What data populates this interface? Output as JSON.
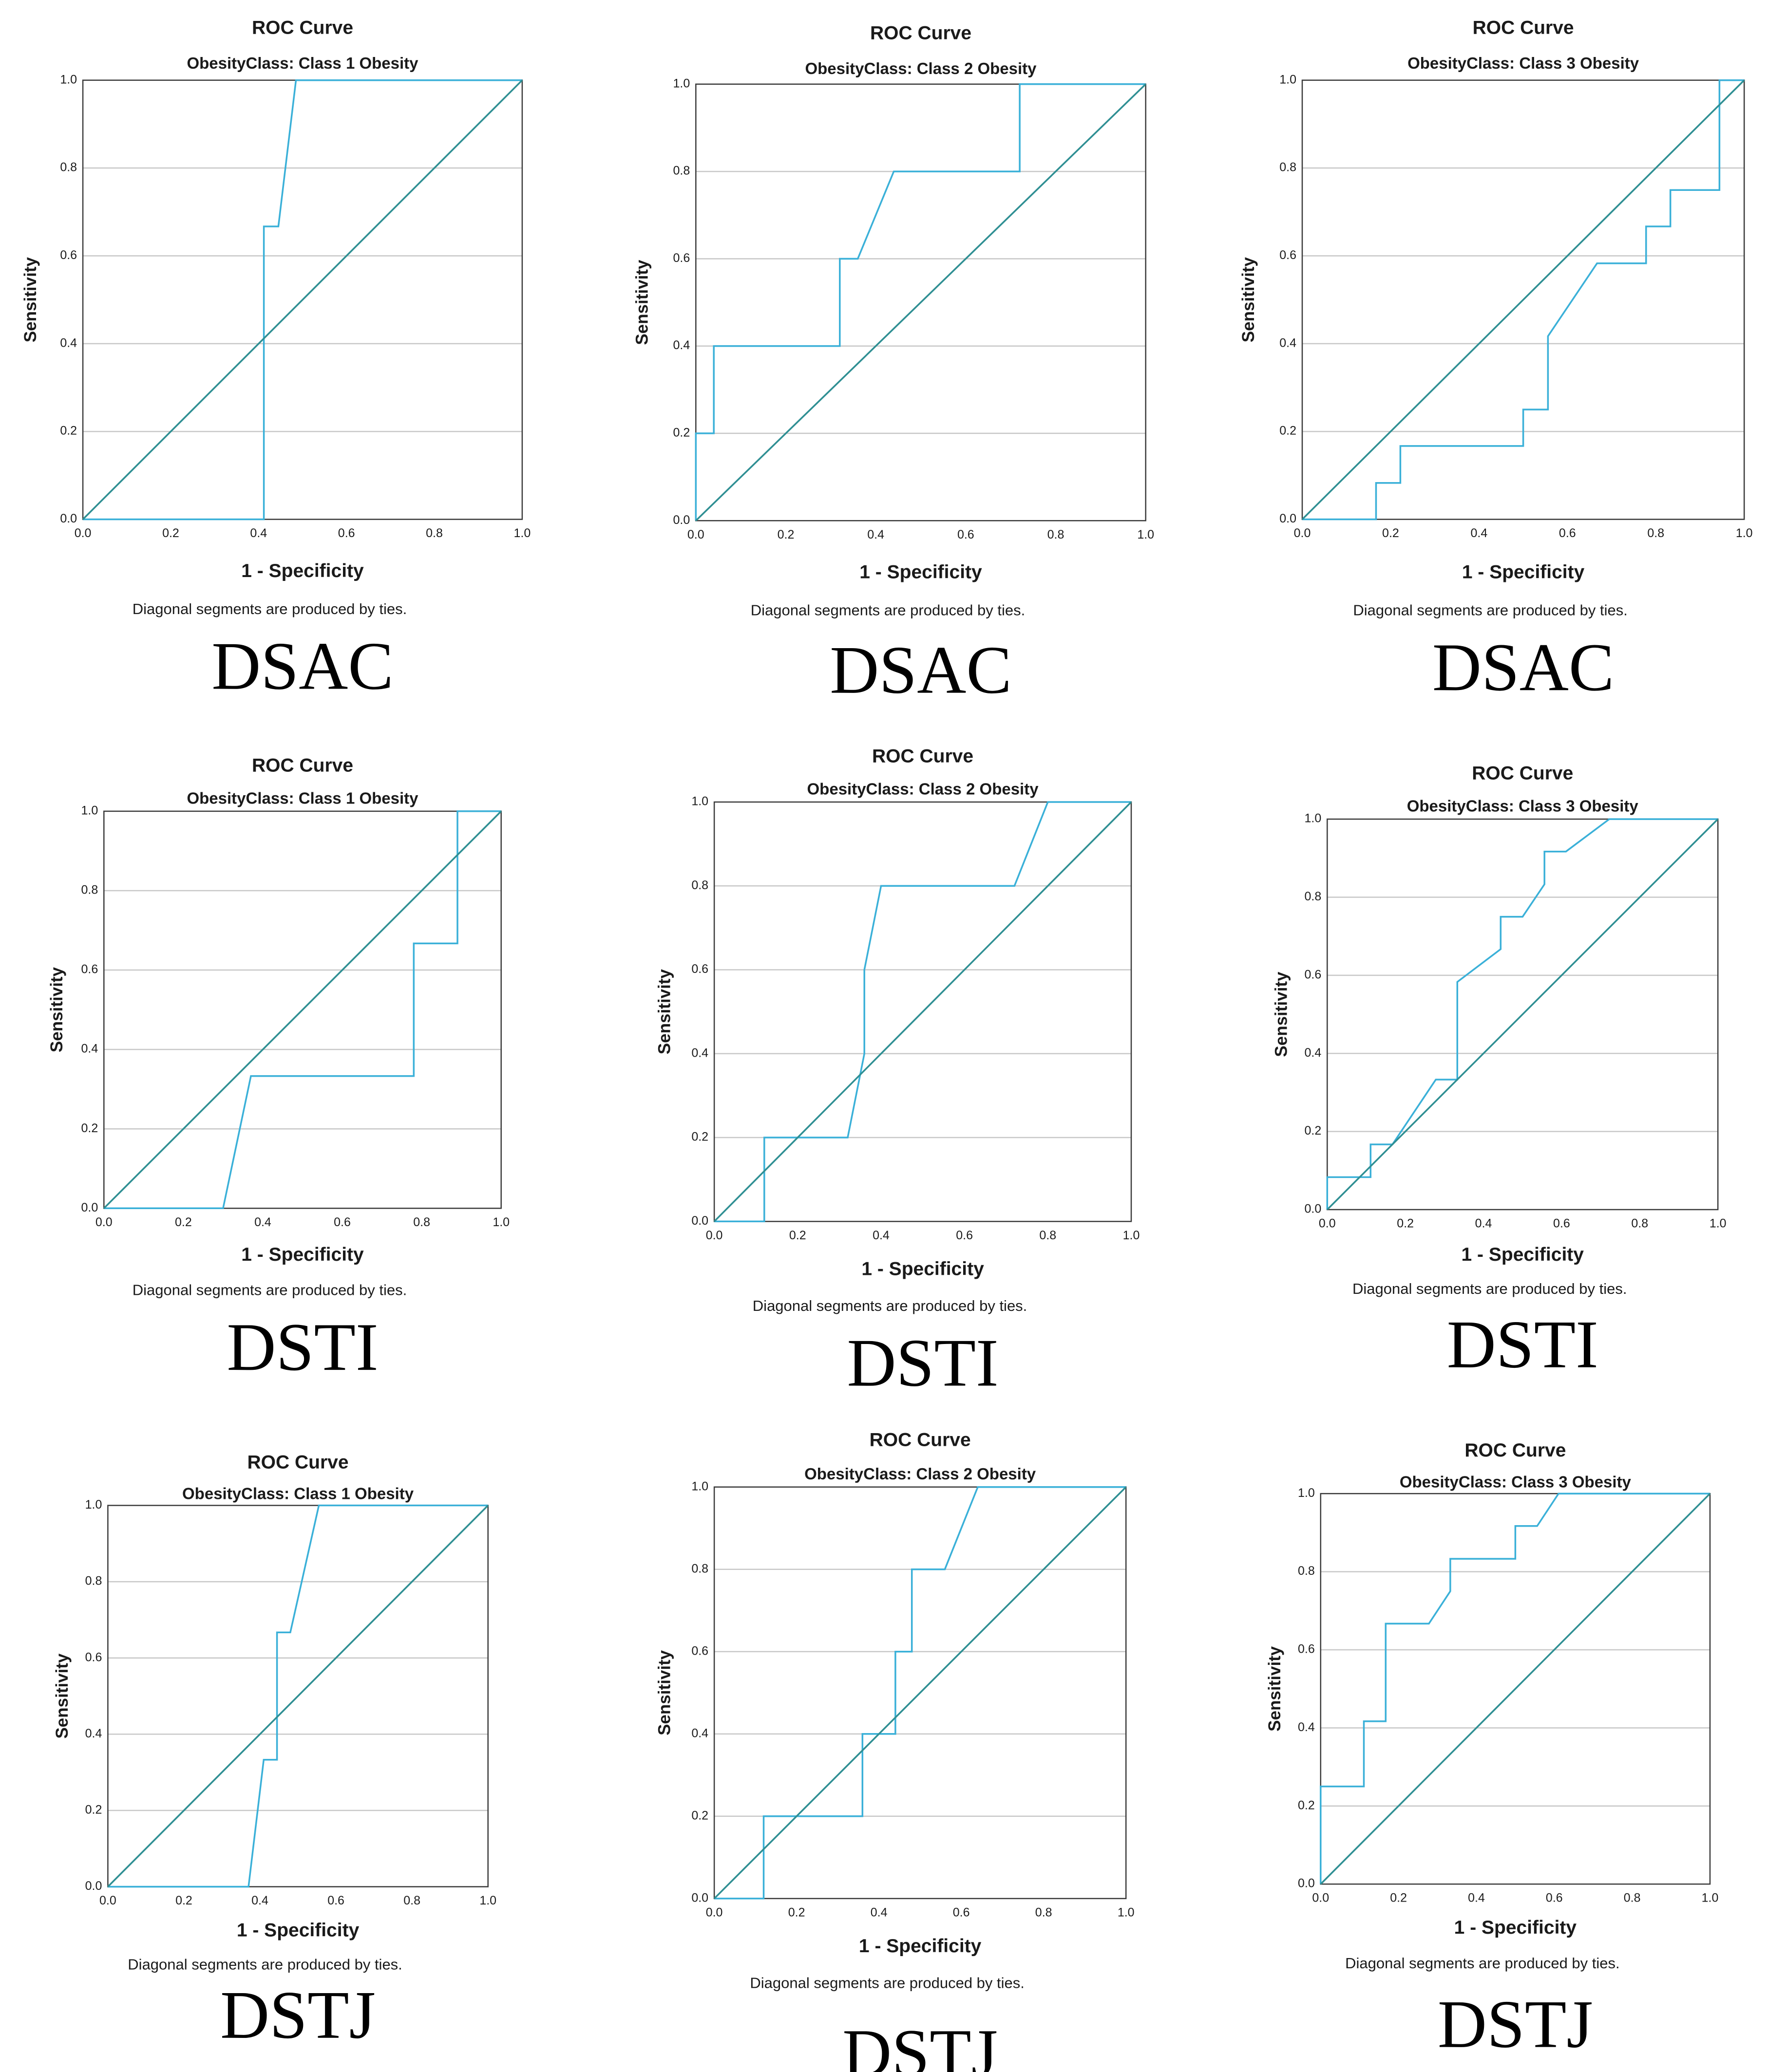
{
  "colors": {
    "roc_line": "#3ab0d8",
    "reference_line": "#2f8f93",
    "grid": "#c8c8c8",
    "frame": "#3a3a3a"
  },
  "chart_data": [
    {
      "type": "line",
      "title": "ROC Curve",
      "subtitle": "ObesityClass: Class 1 Obesity",
      "xlabel": "1 - Specificity",
      "ylabel": "Sensitivity",
      "footnote": "Diagonal segments are produced by ties.",
      "name": "DSAC",
      "xlim": [
        0,
        1
      ],
      "ylim": [
        0,
        1
      ],
      "ticks": [
        "0.0",
        "0.2",
        "0.4",
        "0.6",
        "0.8",
        "1.0"
      ],
      "grid": true,
      "series": [
        {
          "name": "ROC",
          "x": [
            0,
            0.412,
            0.412,
            0.412,
            0.445,
            0.485,
            1.0
          ],
          "y": [
            0,
            0,
            0.333,
            0.667,
            0.667,
            1.0,
            1.0
          ]
        },
        {
          "name": "Reference Line",
          "x": [
            0,
            1
          ],
          "y": [
            0,
            1
          ]
        }
      ]
    },
    {
      "type": "line",
      "title": "ROC Curve",
      "subtitle": "ObesityClass: Class 2 Obesity",
      "xlabel": "1 - Specificity",
      "ylabel": "Sensitivity",
      "footnote": "Diagonal segments are produced by ties.",
      "name": "DSAC",
      "xlim": [
        0,
        1
      ],
      "ylim": [
        0,
        1
      ],
      "ticks": [
        "0.0",
        "0.2",
        "0.4",
        "0.6",
        "0.8",
        "1.0"
      ],
      "grid": true,
      "series": [
        {
          "name": "ROC",
          "x": [
            0,
            0,
            0.04,
            0.04,
            0.32,
            0.32,
            0.36,
            0.44,
            0.72,
            0.72,
            1.0
          ],
          "y": [
            0,
            0.2,
            0.2,
            0.4,
            0.4,
            0.6,
            0.6,
            0.8,
            0.8,
            1.0,
            1.0
          ]
        },
        {
          "name": "Reference Line",
          "x": [
            0,
            1
          ],
          "y": [
            0,
            1
          ]
        }
      ]
    },
    {
      "type": "line",
      "title": "ROC Curve",
      "subtitle": "ObesityClass: Class 3 Obesity",
      "xlabel": "1 - Specificity",
      "ylabel": "Sensitivity",
      "footnote": "Diagonal segments are produced by ties.",
      "name": "DSAC",
      "xlim": [
        0,
        1
      ],
      "ylim": [
        0,
        1
      ],
      "ticks": [
        "0.0",
        "0.2",
        "0.4",
        "0.6",
        "0.8",
        "1.0"
      ],
      "grid": true,
      "series": [
        {
          "name": "ROC",
          "x": [
            0,
            0.167,
            0.167,
            0.222,
            0.222,
            0.5,
            0.5,
            0.556,
            0.556,
            0.667,
            0.778,
            0.778,
            0.833,
            0.833,
            0.944,
            0.944,
            1.0
          ],
          "y": [
            0,
            0,
            0.083,
            0.083,
            0.167,
            0.167,
            0.25,
            0.25,
            0.417,
            0.583,
            0.583,
            0.667,
            0.667,
            0.75,
            0.75,
            1.0,
            1.0
          ]
        },
        {
          "name": "Reference Line",
          "x": [
            0,
            1
          ],
          "y": [
            0,
            1
          ]
        }
      ]
    },
    {
      "type": "line",
      "title": "ROC Curve",
      "subtitle": "ObesityClass: Class 1 Obesity",
      "xlabel": "1 - Specificity",
      "ylabel": "Sensitivity",
      "footnote": "Diagonal segments are produced by ties.",
      "name": "DSTI",
      "xlim": [
        0,
        1
      ],
      "ylim": [
        0,
        1
      ],
      "ticks": [
        "0.0",
        "0.2",
        "0.4",
        "0.6",
        "0.8",
        "1.0"
      ],
      "grid": true,
      "series": [
        {
          "name": "ROC",
          "x": [
            0,
            0.3,
            0.37,
            0.78,
            0.78,
            0.89,
            0.89,
            1.0
          ],
          "y": [
            0,
            0,
            0.333,
            0.333,
            0.667,
            0.667,
            1.0,
            1.0
          ]
        },
        {
          "name": "Reference Line",
          "x": [
            0,
            1
          ],
          "y": [
            0,
            1
          ]
        }
      ]
    },
    {
      "type": "line",
      "title": "ROC Curve",
      "subtitle": "ObesityClass: Class 2 Obesity",
      "xlabel": "1 - Specificity",
      "ylabel": "Sensitivity",
      "footnote": "Diagonal segments are produced by ties.",
      "name": "DSTI",
      "xlim": [
        0,
        1
      ],
      "ylim": [
        0,
        1
      ],
      "ticks": [
        "0.0",
        "0.2",
        "0.4",
        "0.6",
        "0.8",
        "1.0"
      ],
      "grid": true,
      "series": [
        {
          "name": "ROC",
          "x": [
            0,
            0.12,
            0.12,
            0.32,
            0.36,
            0.36,
            0.4,
            0.72,
            0.8,
            1.0
          ],
          "y": [
            0,
            0,
            0.2,
            0.2,
            0.4,
            0.6,
            0.8,
            0.8,
            1.0,
            1.0
          ]
        },
        {
          "name": "Reference Line",
          "x": [
            0,
            1
          ],
          "y": [
            0,
            1
          ]
        }
      ]
    },
    {
      "type": "line",
      "title": "ROC Curve",
      "subtitle": "ObesityClass: Class 3 Obesity",
      "xlabel": "1 - Specificity",
      "ylabel": "Sensitivity",
      "footnote": "Diagonal segments are produced by ties.",
      "name": "DSTI",
      "xlim": [
        0,
        1
      ],
      "ylim": [
        0,
        1
      ],
      "ticks": [
        "0.0",
        "0.2",
        "0.4",
        "0.6",
        "0.8",
        "1.0"
      ],
      "grid": true,
      "series": [
        {
          "name": "ROC",
          "x": [
            0,
            0,
            0.111,
            0.111,
            0.167,
            0.278,
            0.333,
            0.333,
            0.444,
            0.444,
            0.5,
            0.556,
            0.556,
            0.611,
            0.722,
            1.0
          ],
          "y": [
            0,
            0.083,
            0.083,
            0.167,
            0.167,
            0.333,
            0.333,
            0.583,
            0.667,
            0.75,
            0.75,
            0.833,
            0.917,
            0.917,
            1.0,
            1.0
          ]
        },
        {
          "name": "Reference Line",
          "x": [
            0,
            1
          ],
          "y": [
            0,
            1
          ]
        }
      ]
    },
    {
      "type": "line",
      "title": "ROC Curve",
      "subtitle": "ObesityClass: Class 1 Obesity",
      "xlabel": "1 - Specificity",
      "ylabel": "Sensitivity",
      "footnote": "Diagonal segments are produced by ties.",
      "name": "DSTJ",
      "xlim": [
        0,
        1
      ],
      "ylim": [
        0,
        1
      ],
      "ticks": [
        "0.0",
        "0.2",
        "0.4",
        "0.6",
        "0.8",
        "1.0"
      ],
      "grid": true,
      "series": [
        {
          "name": "ROC",
          "x": [
            0,
            0.37,
            0.41,
            0.445,
            0.445,
            0.48,
            0.555,
            1.0
          ],
          "y": [
            0,
            0,
            0.333,
            0.333,
            0.667,
            0.667,
            1.0,
            1.0
          ]
        },
        {
          "name": "Reference Line",
          "x": [
            0,
            1
          ],
          "y": [
            0,
            1
          ]
        }
      ]
    },
    {
      "type": "line",
      "title": "ROC Curve",
      "subtitle": "ObesityClass: Class 2 Obesity",
      "xlabel": "1 - Specificity",
      "ylabel": "Sensitivity",
      "footnote": "Diagonal segments are produced by ties.",
      "name": "DSTJ",
      "xlim": [
        0,
        1
      ],
      "ylim": [
        0,
        1
      ],
      "ticks": [
        "0.0",
        "0.2",
        "0.4",
        "0.6",
        "0.8",
        "1.0"
      ],
      "grid": true,
      "series": [
        {
          "name": "ROC",
          "x": [
            0,
            0.12,
            0.12,
            0.36,
            0.36,
            0.44,
            0.44,
            0.48,
            0.48,
            0.56,
            0.64,
            1.0
          ],
          "y": [
            0,
            0,
            0.2,
            0.2,
            0.4,
            0.4,
            0.6,
            0.6,
            0.8,
            0.8,
            1.0,
            1.0
          ]
        },
        {
          "name": "Reference Line",
          "x": [
            0,
            1
          ],
          "y": [
            0,
            1
          ]
        }
      ]
    },
    {
      "type": "line",
      "title": "ROC Curve",
      "subtitle": "ObesityClass: Class 3 Obesity",
      "xlabel": "1 - Specificity",
      "ylabel": "Sensitivity",
      "footnote": "Diagonal segments are produced by ties.",
      "name": "DSTJ",
      "xlim": [
        0,
        1
      ],
      "ylim": [
        0,
        1
      ],
      "ticks": [
        "0.0",
        "0.2",
        "0.4",
        "0.6",
        "0.8",
        "1.0"
      ],
      "grid": true,
      "series": [
        {
          "name": "ROC",
          "x": [
            0,
            0,
            0.111,
            0.111,
            0.167,
            0.167,
            0.278,
            0.333,
            0.333,
            0.5,
            0.5,
            0.556,
            0.611,
            1.0
          ],
          "y": [
            0,
            0.25,
            0.25,
            0.417,
            0.417,
            0.667,
            0.667,
            0.75,
            0.833,
            0.833,
            0.917,
            0.917,
            1.0,
            1.0
          ]
        },
        {
          "name": "Reference Line",
          "x": [
            0,
            1
          ],
          "y": [
            0,
            1
          ]
        }
      ]
    }
  ]
}
